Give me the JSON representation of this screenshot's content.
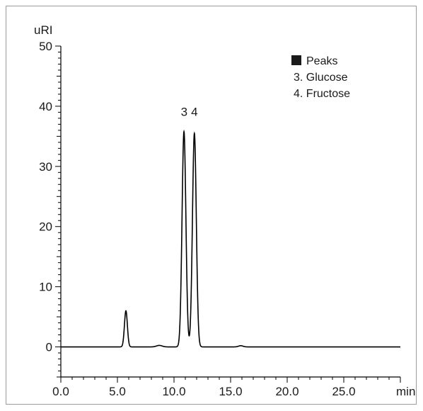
{
  "chart_data": {
    "type": "line",
    "title": "",
    "ylabel": "uRI",
    "xlabel": "min",
    "xlim": [
      0,
      30
    ],
    "ylim": [
      -5,
      50
    ],
    "x_ticks": [
      "0.0",
      "5.0",
      "10.0",
      "15.0",
      "20.0",
      "25.0"
    ],
    "y_ticks": [
      "50",
      "40",
      "30",
      "20",
      "10",
      "0"
    ],
    "grid": false,
    "legend": {
      "position": "top-right",
      "marker_color": "#1a1a1a",
      "title": "Peaks",
      "entries": [
        "3. Glucose",
        "4. Fructose"
      ]
    },
    "peak_labels": [
      {
        "label": "3",
        "x": 10.9
      },
      {
        "label": "4",
        "x": 11.8
      }
    ],
    "series": [
      {
        "color": "#000000",
        "peaks": [
          {
            "x": 5.75,
            "y": 6.0,
            "width": 0.13
          },
          {
            "x": 10.88,
            "y": 35.8,
            "width": 0.17
          },
          {
            "x": 11.8,
            "y": 35.5,
            "width": 0.17
          },
          {
            "x": 8.7,
            "y": 0.25,
            "width": 0.25
          },
          {
            "x": 15.9,
            "y": 0.2,
            "width": 0.2
          }
        ],
        "baseline": 0
      }
    ]
  }
}
